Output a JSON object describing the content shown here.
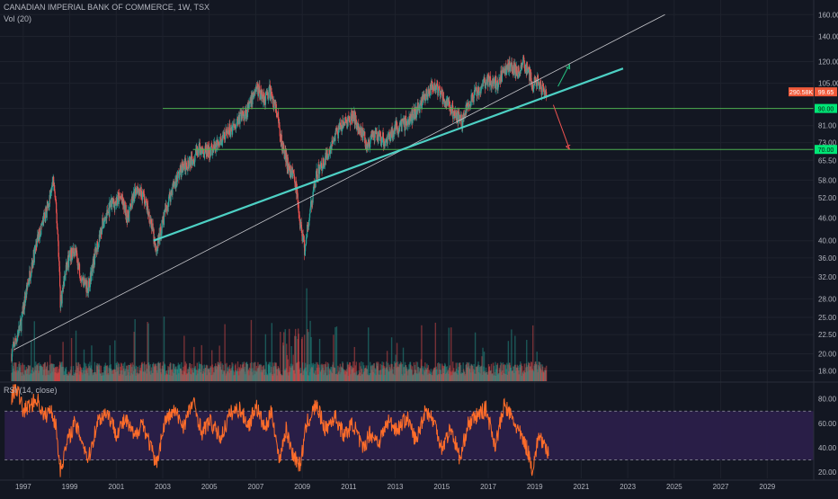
{
  "chart": {
    "title": "CANADIAN IMPERIAL BANK OF COMMERCE, 1W, TSX",
    "volume_label": "Vol (20)",
    "rsi_label": "RSI (14, close)",
    "price_badge_left": "290.58K",
    "price_badge_right": "99.65",
    "level_90_label": "90.00",
    "level_70_label": "70.00"
  },
  "chart_data": {
    "type": "candlestick",
    "title": "CANADIAN IMPERIAL BANK OF COMMERCE, 1W, TSX",
    "price_axis": {
      "scale": "log",
      "ticks": [
        "160.00",
        "140.00",
        "120.00",
        "105.00",
        "90.00",
        "81.00",
        "73.00",
        "65.50",
        "58.00",
        "52.00",
        "46.00",
        "40.00",
        "36.00",
        "32.00",
        "28.00",
        "25.00",
        "22.50",
        "20.00",
        "18.00"
      ]
    },
    "rsi_axis": {
      "ticks": [
        "80.00",
        "60.00",
        "40.00",
        "20.00"
      ],
      "upper_band": 70,
      "lower_band": 30
    },
    "x_ticks": [
      "1997",
      "1999",
      "2001",
      "2003",
      "2005",
      "2007",
      "2009",
      "2011",
      "2013",
      "2015",
      "2017",
      "2019",
      "2021",
      "2023",
      "2025",
      "2027",
      "2029"
    ],
    "price_path": [
      [
        "1996.5",
        20
      ],
      [
        "1996.9",
        24
      ],
      [
        "1997.3",
        33
      ],
      [
        "1997.7",
        42
      ],
      [
        "1998.1",
        50
      ],
      [
        "1998.3",
        58
      ],
      [
        "1998.5",
        40
      ],
      [
        "1998.6",
        27
      ],
      [
        "1998.9",
        35
      ],
      [
        "1999.2",
        38
      ],
      [
        "1999.5",
        32
      ],
      [
        "1999.8",
        30
      ],
      [
        "2000.1",
        37
      ],
      [
        "2000.4",
        44
      ],
      [
        "2000.8",
        50
      ],
      [
        "2001.2",
        52
      ],
      [
        "2001.5",
        46
      ],
      [
        "2001.9",
        56
      ],
      [
        "2002.2",
        52
      ],
      [
        "2002.5",
        45
      ],
      [
        "2002.7",
        37
      ],
      [
        "2003.0",
        45
      ],
      [
        "2003.4",
        55
      ],
      [
        "2003.8",
        62
      ],
      [
        "2004.2",
        66
      ],
      [
        "2004.6",
        70
      ],
      [
        "2005.0",
        69
      ],
      [
        "2005.5",
        73
      ],
      [
        "2005.9",
        79
      ],
      [
        "2006.3",
        85
      ],
      [
        "2006.7",
        90
      ],
      [
        "2007.0",
        102
      ],
      [
        "2007.4",
        96
      ],
      [
        "2007.6",
        100
      ],
      [
        "2007.9",
        88
      ],
      [
        "2008.1",
        73
      ],
      [
        "2008.4",
        63
      ],
      [
        "2008.7",
        58
      ],
      [
        "2008.9",
        45
      ],
      [
        "2009.1",
        38
      ],
      [
        "2009.3",
        46
      ],
      [
        "2009.6",
        60
      ],
      [
        "2010.0",
        66
      ],
      [
        "2010.4",
        76
      ],
      [
        "2010.8",
        82
      ],
      [
        "2011.2",
        86
      ],
      [
        "2011.6",
        77
      ],
      [
        "2011.8",
        72
      ],
      [
        "2012.2",
        76
      ],
      [
        "2012.6",
        74
      ],
      [
        "2013.0",
        80
      ],
      [
        "2013.4",
        82
      ],
      [
        "2013.8",
        87
      ],
      [
        "2014.2",
        95
      ],
      [
        "2014.6",
        103
      ],
      [
        "2014.9",
        100
      ],
      [
        "2015.2",
        93
      ],
      [
        "2015.6",
        86
      ],
      [
        "2015.9",
        83
      ],
      [
        "2016.2",
        94
      ],
      [
        "2016.6",
        101
      ],
      [
        "2017.0",
        108
      ],
      [
        "2017.4",
        105
      ],
      [
        "2017.7",
        114
      ],
      [
        "2018.0",
        118
      ],
      [
        "2018.3",
        112
      ],
      [
        "2018.5",
        119
      ],
      [
        "2018.7",
        115
      ],
      [
        "2018.9",
        104
      ],
      [
        "2019.1",
        108
      ],
      [
        "2019.3",
        102
      ],
      [
        "2019.5",
        99.65
      ]
    ],
    "volume_style": "histogram, green and red weekly bars",
    "rsi_path": [
      [
        "1996.5",
        82
      ],
      [
        "1996.7",
        90
      ],
      [
        "1997.0",
        70
      ],
      [
        "1997.3",
        75
      ],
      [
        "1997.6",
        80
      ],
      [
        "1997.9",
        65
      ],
      [
        "1998.2",
        72
      ],
      [
        "1998.4",
        58
      ],
      [
        "1998.6",
        22
      ],
      [
        "1998.9",
        45
      ],
      [
        "1999.2",
        60
      ],
      [
        "1999.5",
        48
      ],
      [
        "1999.8",
        30
      ],
      [
        "2000.2",
        62
      ],
      [
        "2000.6",
        70
      ],
      [
        "2001.0",
        52
      ],
      [
        "2001.4",
        63
      ],
      [
        "2001.8",
        48
      ],
      [
        "2002.1",
        62
      ],
      [
        "2002.5",
        40
      ],
      [
        "2002.7",
        25
      ],
      [
        "2003.1",
        62
      ],
      [
        "2003.5",
        70
      ],
      [
        "2003.9",
        58
      ],
      [
        "2004.3",
        78
      ],
      [
        "2004.7",
        52
      ],
      [
        "2005.0",
        62
      ],
      [
        "2005.5",
        48
      ],
      [
        "2005.9",
        68
      ],
      [
        "2006.3",
        72
      ],
      [
        "2006.7",
        58
      ],
      [
        "2007.0",
        75
      ],
      [
        "2007.4",
        55
      ],
      [
        "2007.7",
        70
      ],
      [
        "2008.0",
        30
      ],
      [
        "2008.3",
        55
      ],
      [
        "2008.6",
        35
      ],
      [
        "2008.9",
        25
      ],
      [
        "2009.2",
        60
      ],
      [
        "2009.6",
        75
      ],
      [
        "2010.0",
        55
      ],
      [
        "2010.4",
        66
      ],
      [
        "2010.8",
        50
      ],
      [
        "2011.2",
        60
      ],
      [
        "2011.6",
        38
      ],
      [
        "2011.9",
        52
      ],
      [
        "2012.3",
        45
      ],
      [
        "2012.7",
        62
      ],
      [
        "2013.1",
        55
      ],
      [
        "2013.5",
        65
      ],
      [
        "2013.9",
        45
      ],
      [
        "2014.3",
        72
      ],
      [
        "2014.7",
        60
      ],
      [
        "2015.0",
        40
      ],
      [
        "2015.4",
        56
      ],
      [
        "2015.8",
        30
      ],
      [
        "2016.1",
        58
      ],
      [
        "2016.5",
        66
      ],
      [
        "2016.9",
        72
      ],
      [
        "2017.3",
        42
      ],
      [
        "2017.7",
        75
      ],
      [
        "2018.0",
        65
      ],
      [
        "2018.4",
        50
      ],
      [
        "2018.7",
        38
      ],
      [
        "2018.9",
        22
      ],
      [
        "2019.2",
        52
      ],
      [
        "2019.4",
        40
      ],
      [
        "2019.6",
        35
      ]
    ],
    "drawings": {
      "horizontal_levels": [
        90,
        70
      ],
      "long_trendline": {
        "from": [
          "1996.6",
          20.5
        ],
        "to": [
          "2024.6",
          160
        ]
      },
      "support_trendline": {
        "from": [
          "2002.6",
          40
        ],
        "to": [
          "2022.8",
          115
        ]
      },
      "up_arrow": {
        "from": [
          "2020.0",
          103
        ],
        "to": [
          "2020.5",
          118
        ]
      },
      "down_arrow": {
        "from": [
          "2019.8",
          92
        ],
        "to": [
          "2020.5",
          70
        ]
      }
    },
    "colors": {
      "background": "#131722",
      "grid": "#1e222d",
      "candle_up": "#26a69a",
      "candle_down": "#ef5350",
      "level_line": "#4caf50",
      "level_label_bg": "#00e676",
      "trendline_support": "#4dd0c4",
      "trendline_long": "#c7c8cd",
      "rsi_line": "#ff6d2a",
      "rsi_band_fill": "#2a1f4a",
      "price_badge": "#f05a3a",
      "axis_text": "#b2b5be"
    }
  }
}
